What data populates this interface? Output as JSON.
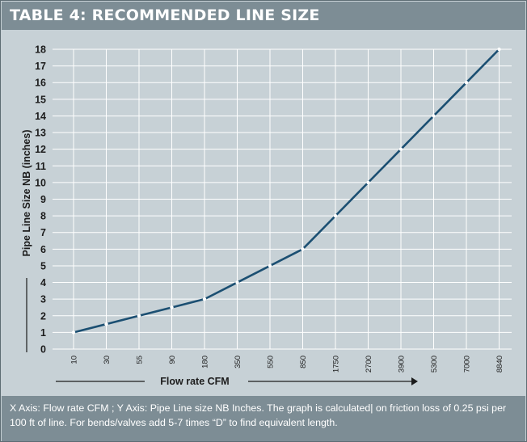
{
  "header": {
    "title": "TABLE 4:  RECOMMENDED LINE SIZE"
  },
  "chart_data": {
    "type": "line",
    "title": "TABLE 4:  RECOMMENDED LINE SIZE",
    "xlabel": "Flow rate CFM",
    "ylabel": "Pipe Line Size NB (inches)",
    "categories": [
      "10",
      "30",
      "55",
      "90",
      "180",
      "350",
      "550",
      "850",
      "1750",
      "2700",
      "3900",
      "5300",
      "7000",
      "8840"
    ],
    "series": [
      {
        "name": "Recommended line size",
        "values": [
          1,
          1.5,
          2,
          2.5,
          3,
          4,
          5,
          6,
          8,
          10,
          12,
          14,
          16,
          18
        ]
      }
    ],
    "yticks": [
      "0",
      "1",
      "2",
      "3",
      "4",
      "5",
      "6",
      "7",
      "8",
      "9",
      "10",
      "11",
      "12",
      "13",
      "14",
      "15",
      "16",
      "17",
      "18"
    ],
    "ylim": [
      0,
      18
    ],
    "grid": true,
    "colors": {
      "line": "#1b4f72",
      "marker": "#ffffff",
      "grid": "#ffffff"
    }
  },
  "footer": {
    "caption": "X Axis: Flow rate CFM ; Y Axis: Pipe Line size NB Inches. The graph is calculated| on friction loss of 0.25 psi per 100 ft of line. For bends/valves add 5-7 times “D” to find equivalent length."
  }
}
